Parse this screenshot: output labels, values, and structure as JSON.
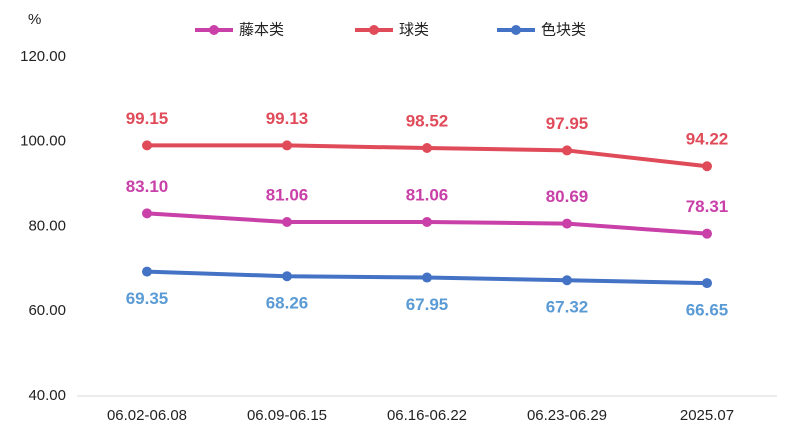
{
  "chart_data": {
    "type": "line",
    "y_unit": "%",
    "categories": [
      "06.02-06.08",
      "06.09-06.15",
      "06.16-06.22",
      "06.23-06.29",
      "2025.07"
    ],
    "series": [
      {
        "name": "藤本类",
        "color": "#c840a8",
        "label_color": "#c840a8",
        "label_position": "above",
        "values": [
          83.1,
          81.06,
          81.06,
          80.69,
          78.31
        ],
        "value_labels": [
          "83.10",
          "81.06",
          "81.06",
          "80.69",
          "78.31"
        ]
      },
      {
        "name": "球类",
        "color": "#e04b5a",
        "label_color": "#e04b5a",
        "label_position": "above",
        "values": [
          99.15,
          99.13,
          98.52,
          97.95,
          94.22
        ],
        "value_labels": [
          "99.15",
          "99.13",
          "98.52",
          "97.95",
          "94.22"
        ]
      },
      {
        "name": "色块类",
        "color": "#4472c4",
        "label_color": "#5b9bd5",
        "label_position": "below",
        "values": [
          69.35,
          68.26,
          67.95,
          67.32,
          66.65
        ],
        "value_labels": [
          "69.35",
          "68.26",
          "67.95",
          "67.32",
          "66.65"
        ]
      }
    ],
    "ylim": [
      40,
      120
    ],
    "yticks": [
      {
        "value": 40,
        "label": "40.00"
      },
      {
        "value": 60,
        "label": "60.00"
      },
      {
        "value": 80,
        "label": "80.00"
      },
      {
        "value": 100,
        "label": "100.00"
      },
      {
        "value": 120,
        "label": "120.00"
      }
    ],
    "legend": "top"
  }
}
